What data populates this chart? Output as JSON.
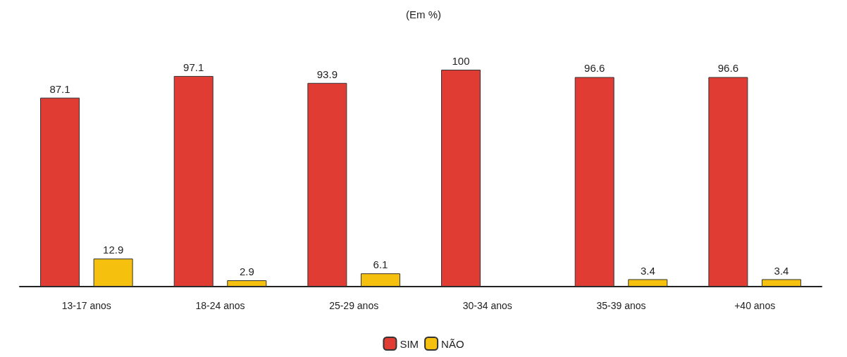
{
  "chart_data": {
    "type": "bar",
    "title": "(Em %)",
    "categories": [
      "13-17 anos",
      "18-24 anos",
      "25-29 anos",
      "30-34 anos",
      "35-39 anos",
      "+40 anos"
    ],
    "series": [
      {
        "name": "SIM",
        "color": "#e03c34",
        "values": [
          87.1,
          97.1,
          93.9,
          100,
          96.6,
          96.6
        ]
      },
      {
        "name": "NÃO",
        "color": "#f5c10e",
        "values": [
          12.9,
          2.9,
          6.1,
          null,
          3.4,
          3.4
        ]
      }
    ],
    "data_labels": true,
    "legend": "bottom"
  }
}
